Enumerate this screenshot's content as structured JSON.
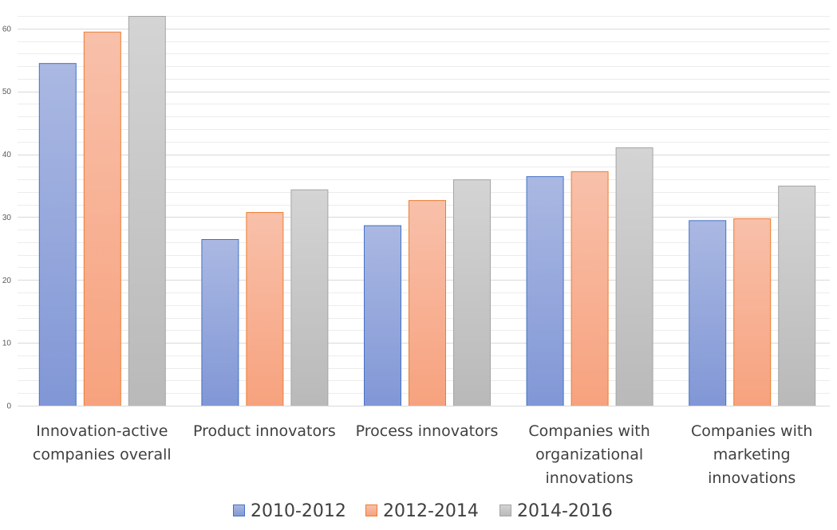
{
  "chart_data": {
    "type": "bar",
    "categories": [
      [
        "Innovation-active",
        "companies overall"
      ],
      [
        "Product innovators"
      ],
      [
        "Process innovators"
      ],
      [
        "Companies with",
        "organizational",
        "innovations"
      ],
      [
        "Companies with",
        "marketing",
        "innovations"
      ]
    ],
    "series": [
      {
        "name": "2010-2012",
        "values": [
          54.5,
          26.5,
          28.7,
          36.5,
          29.5
        ],
        "color": "#8197d6",
        "color_top": "#aab8e2",
        "border": "#4472c4"
      },
      {
        "name": "2012-2014",
        "values": [
          59.5,
          30.8,
          32.7,
          37.3,
          29.8
        ],
        "color": "#f7a27e",
        "color_top": "#f8c0aa",
        "border": "#ed7d31"
      },
      {
        "name": "2014-2016",
        "values": [
          62.0,
          34.4,
          36.0,
          41.1,
          35.0
        ],
        "color": "#b9b9b9",
        "color_top": "#d4d4d4",
        "border": "#a5a5a5"
      }
    ],
    "y_ticks": [
      "0",
      "10",
      "20",
      "30",
      "40",
      "50",
      "60"
    ],
    "ylim": [
      0,
      62
    ],
    "grid": true,
    "minor_grid_step": 2,
    "legend_position": "bottom",
    "title": "",
    "xlabel": "",
    "ylabel": ""
  }
}
